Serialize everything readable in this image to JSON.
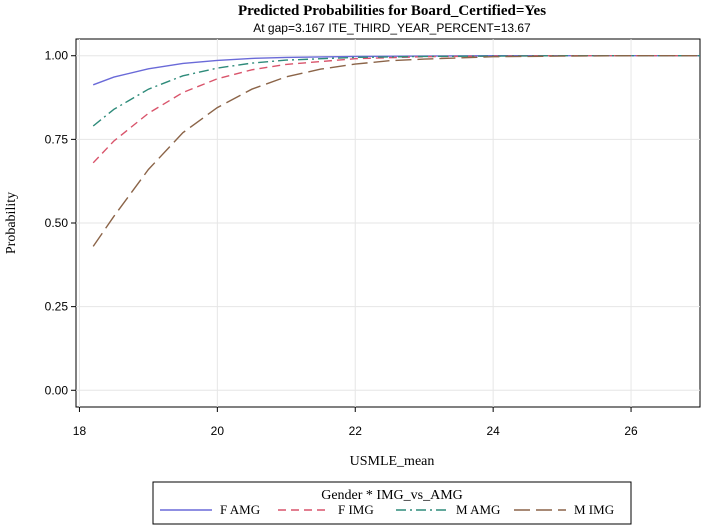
{
  "chart_data": {
    "type": "line",
    "title": "Predicted Probabilities for Board_Certified=Yes",
    "subtitle": "At gap=3.167 ITE_THIRD_YEAR_PERCENT=13.67",
    "xlabel": "USMLE_mean",
    "ylabel": "Probability",
    "xlim": [
      17.95,
      27.0
    ],
    "ylim": [
      -0.05,
      1.05
    ],
    "xticks": [
      18,
      20,
      22,
      24,
      26
    ],
    "yticks": [
      0.0,
      0.25,
      0.5,
      0.75,
      1.0
    ],
    "xtick_labels": [
      "18",
      "20",
      "22",
      "24",
      "26"
    ],
    "ytick_labels": [
      "0.00",
      "0.25",
      "0.50",
      "0.75",
      "1.00"
    ],
    "grid": true,
    "legend": {
      "title": "Gender * IMG_vs_AMG",
      "placement": "bottom"
    },
    "series": [
      {
        "name": "F AMG",
        "color": "#6a6ad8",
        "dash": "solid",
        "x": [
          18.2,
          18.5,
          19.0,
          19.5,
          20.0,
          20.5,
          21.0,
          22.0,
          23.0,
          24.0,
          25.0,
          26.0,
          27.0
        ],
        "y": [
          0.913,
          0.936,
          0.961,
          0.977,
          0.986,
          0.992,
          0.995,
          0.998,
          0.999,
          1.0,
          1.0,
          1.0,
          1.0
        ]
      },
      {
        "name": "F IMG",
        "color": "#d9546b",
        "dash": "dashed",
        "x": [
          18.2,
          18.5,
          19.0,
          19.5,
          20.0,
          20.5,
          21.0,
          22.0,
          23.0,
          24.0,
          25.0,
          26.0,
          27.0
        ],
        "y": [
          0.68,
          0.745,
          0.828,
          0.89,
          0.931,
          0.958,
          0.974,
          0.991,
          0.997,
          0.999,
          1.0,
          1.0,
          1.0
        ]
      },
      {
        "name": "M AMG",
        "color": "#2e8b7a",
        "dash": "dashdot",
        "x": [
          18.2,
          18.5,
          19.0,
          19.5,
          20.0,
          20.5,
          21.0,
          22.0,
          23.0,
          24.0,
          25.0,
          26.0,
          27.0
        ],
        "y": [
          0.79,
          0.84,
          0.9,
          0.94,
          0.963,
          0.978,
          0.987,
          0.995,
          0.998,
          0.999,
          1.0,
          1.0,
          1.0
        ]
      },
      {
        "name": "M IMG",
        "color": "#8b6448",
        "dash": "longdash",
        "x": [
          18.2,
          18.5,
          19.0,
          19.5,
          20.0,
          20.5,
          21.0,
          21.5,
          22.0,
          22.5,
          23.0,
          24.0,
          25.0,
          26.0,
          27.0
        ],
        "y": [
          0.43,
          0.52,
          0.66,
          0.77,
          0.845,
          0.9,
          0.937,
          0.96,
          0.975,
          0.985,
          0.99,
          0.997,
          0.999,
          1.0,
          1.0
        ]
      }
    ]
  }
}
